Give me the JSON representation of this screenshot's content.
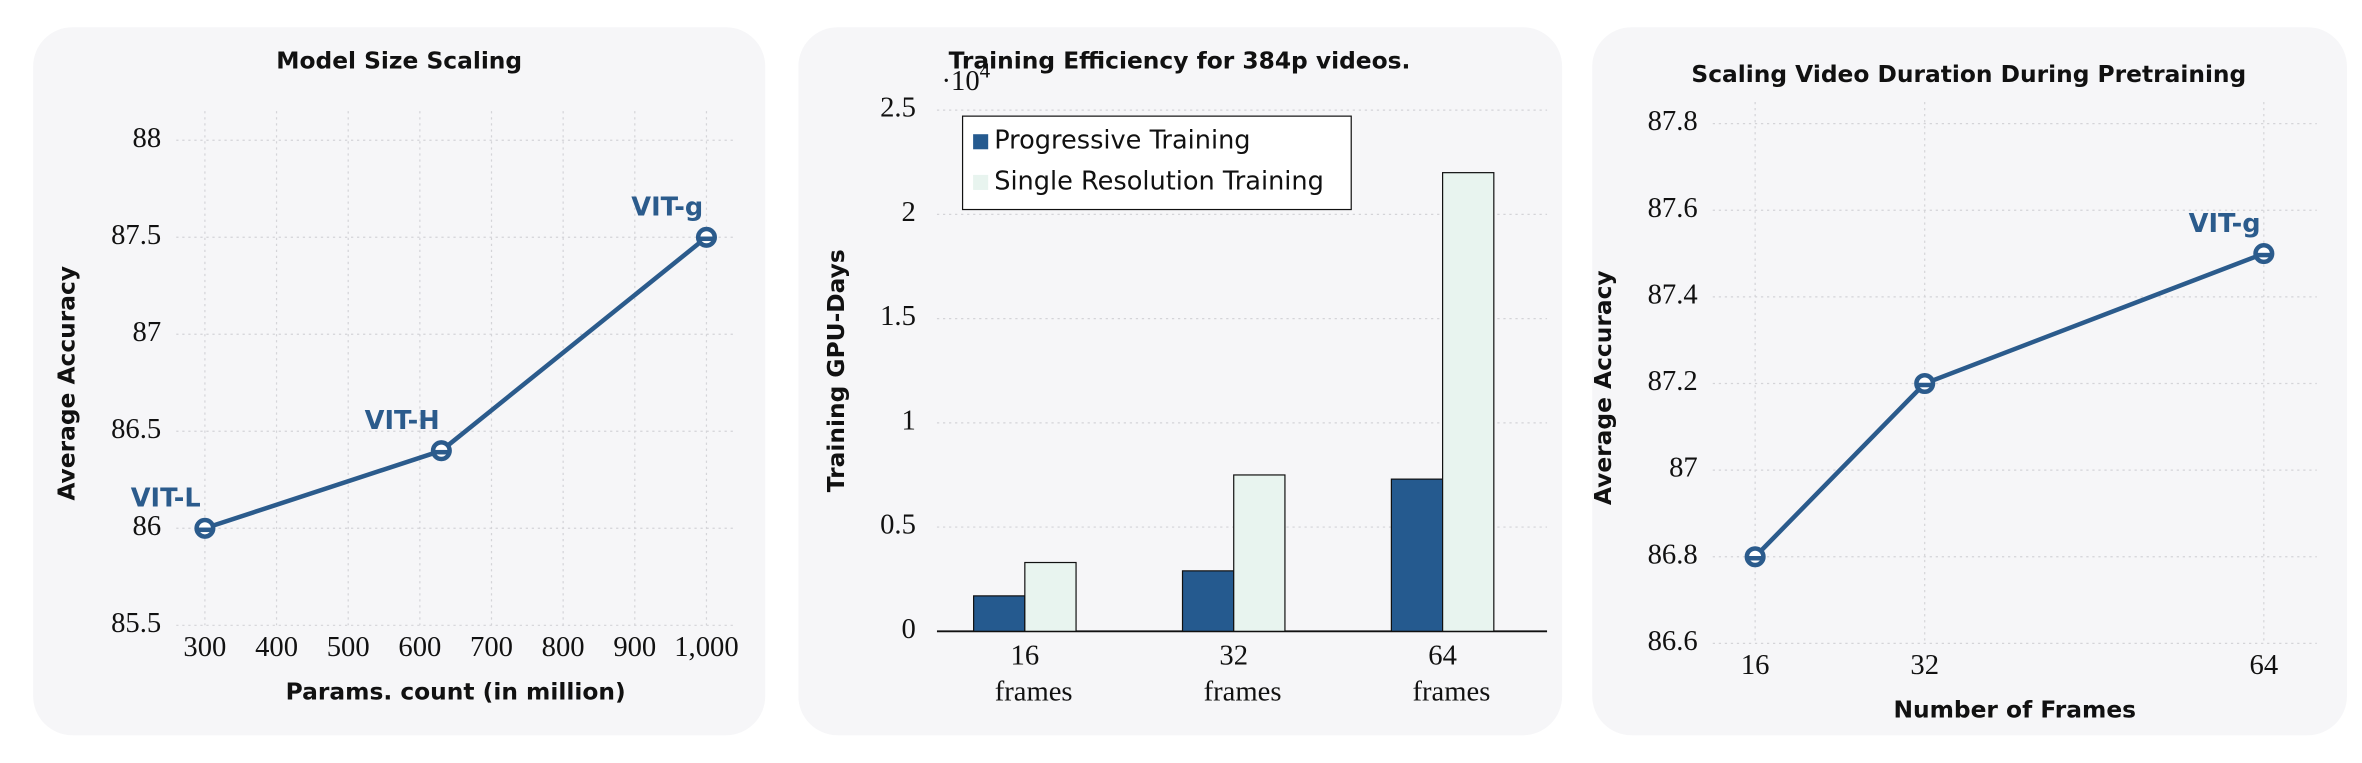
{
  "chart_data": [
    {
      "type": "line",
      "title": "Model Size Scaling",
      "x_label": "Params. count (in million)",
      "y_label": "Average Accuracy",
      "x": [
        300,
        630,
        1000
      ],
      "series": [
        {
          "name": "Model Size",
          "color": "#2b5b8c",
          "values": [
            86,
            86.4,
            87.5
          ],
          "point_labels": [
            "VIT-L",
            "VIT-H",
            "VIT-g"
          ]
        }
      ],
      "xlim": [
        260,
        1040
      ],
      "xticks": [
        300,
        400,
        500,
        600,
        700,
        800,
        900,
        {
          "value": 1000,
          "label": "1,000"
        }
      ],
      "ylim": [
        85.5,
        88.15
      ],
      "yticks": [
        85.5,
        86,
        86.5,
        87,
        87.5,
        88
      ],
      "grid": true
    },
    {
      "type": "bar",
      "title": "Training Efficiency for 384p videos.",
      "y_label": "Training GPU-Days",
      "axis_multiplier": {
        "base": "·10",
        "exponent": "4"
      },
      "categories": [
        "16 frames",
        "32 frames",
        "64 frames"
      ],
      "series": [
        {
          "name": "Progressive Training",
          "color": "#255a8f",
          "values": [
            0.17,
            0.29,
            0.73
          ]
        },
        {
          "name": "Single Resolution Training",
          "color": "#e8f4ef",
          "values": [
            0.33,
            0.75,
            2.2
          ]
        }
      ],
      "ylim": [
        0,
        2.5
      ],
      "yticks": [
        0,
        0.5,
        1,
        1.5,
        2,
        2.5
      ],
      "grid": true,
      "legend": "upper left"
    },
    {
      "type": "line",
      "title": "Scaling Video Duration During Pretraining",
      "x_label": "Number of Frames",
      "y_label": "Average Accuracy",
      "x": [
        16,
        32,
        64
      ],
      "series": [
        {
          "name": "Frames",
          "color": "#2b5b8c",
          "values": [
            86.8,
            87.2,
            87.5
          ],
          "point_labels": [
            null,
            null,
            "VIT-g"
          ]
        }
      ],
      "xlim": [
        12,
        69
      ],
      "xticks": [
        16,
        32,
        64
      ],
      "ylim": [
        86.6,
        87.85
      ],
      "yticks": [
        86.6,
        86.8,
        87,
        87.2,
        87.4,
        87.6,
        87.8
      ],
      "grid": true
    }
  ]
}
